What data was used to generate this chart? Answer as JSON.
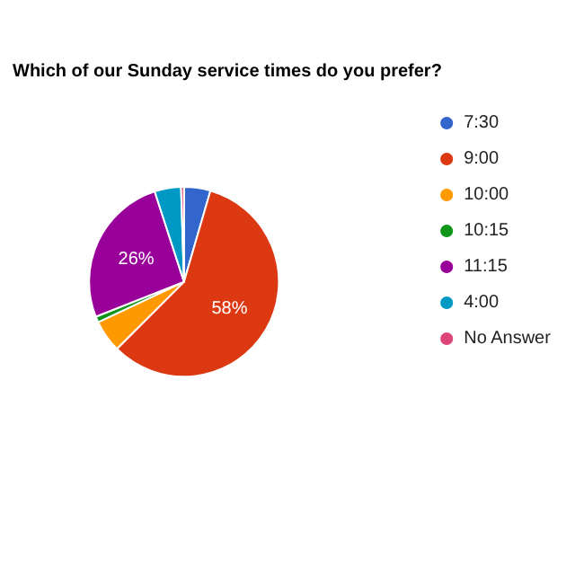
{
  "chart_data": {
    "type": "pie",
    "title": "Which of our Sunday service times do you prefer?",
    "categories": [
      "7:30",
      "9:00",
      "10:00",
      "10:15",
      "11:15",
      "4:00",
      "No Answer"
    ],
    "values": [
      4.5,
      58,
      5.5,
      1,
      26,
      4.5,
      0.5
    ],
    "colors": [
      "#3366cc",
      "#dc3912",
      "#ff9900",
      "#109618",
      "#990099",
      "#0099c6",
      "#dd4477"
    ],
    "value_labels": [
      null,
      "58%",
      null,
      null,
      "26%",
      null,
      null
    ],
    "legend": "right"
  }
}
